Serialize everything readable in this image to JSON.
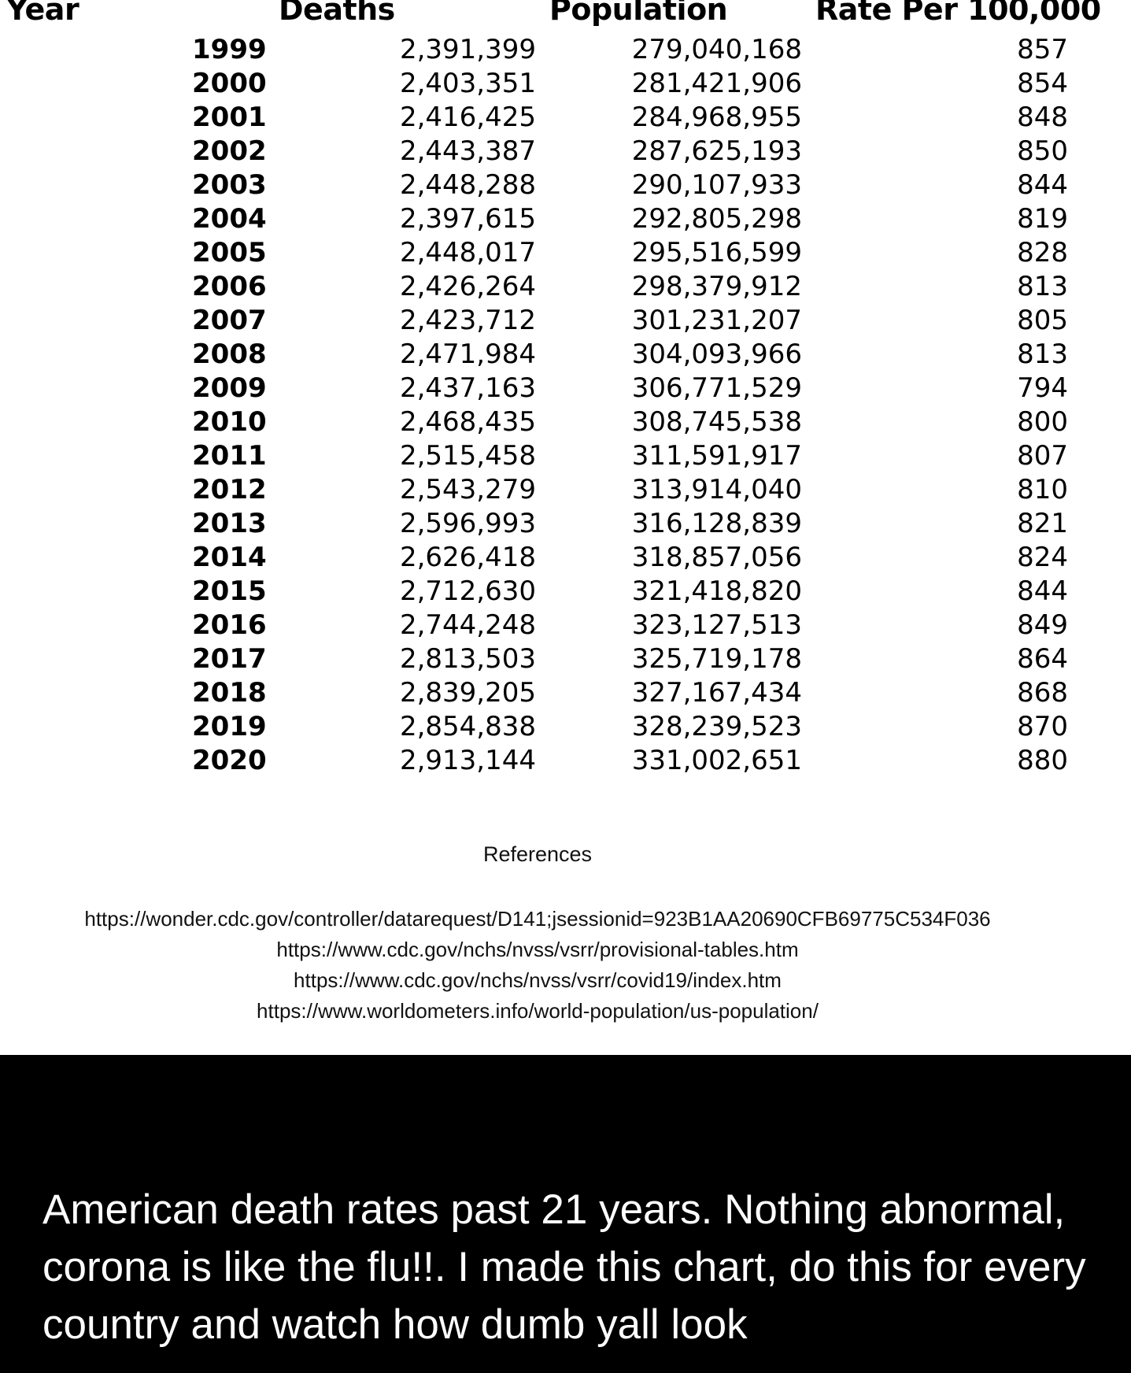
{
  "table": {
    "headers": {
      "year": "Year",
      "deaths": "Deaths",
      "population": "Population",
      "rate": "Rate Per 100,000"
    },
    "rows": [
      {
        "year": "1999",
        "deaths": "2,391,399",
        "population": "279,040,168",
        "rate": "857"
      },
      {
        "year": "2000",
        "deaths": "2,403,351",
        "population": "281,421,906",
        "rate": "854"
      },
      {
        "year": "2001",
        "deaths": "2,416,425",
        "population": "284,968,955",
        "rate": "848"
      },
      {
        "year": "2002",
        "deaths": "2,443,387",
        "population": "287,625,193",
        "rate": "850"
      },
      {
        "year": "2003",
        "deaths": "2,448,288",
        "population": "290,107,933",
        "rate": "844"
      },
      {
        "year": "2004",
        "deaths": "2,397,615",
        "population": "292,805,298",
        "rate": "819"
      },
      {
        "year": "2005",
        "deaths": "2,448,017",
        "population": "295,516,599",
        "rate": "828"
      },
      {
        "year": "2006",
        "deaths": "2,426,264",
        "population": "298,379,912",
        "rate": "813"
      },
      {
        "year": "2007",
        "deaths": "2,423,712",
        "population": "301,231,207",
        "rate": "805"
      },
      {
        "year": "2008",
        "deaths": "2,471,984",
        "population": "304,093,966",
        "rate": "813"
      },
      {
        "year": "2009",
        "deaths": "2,437,163",
        "population": "306,771,529",
        "rate": "794"
      },
      {
        "year": "2010",
        "deaths": "2,468,435",
        "population": "308,745,538",
        "rate": "800"
      },
      {
        "year": "2011",
        "deaths": "2,515,458",
        "population": "311,591,917",
        "rate": "807"
      },
      {
        "year": "2012",
        "deaths": "2,543,279",
        "population": "313,914,040",
        "rate": "810"
      },
      {
        "year": "2013",
        "deaths": "2,596,993",
        "population": "316,128,839",
        "rate": "821"
      },
      {
        "year": "2014",
        "deaths": "2,626,418",
        "population": "318,857,056",
        "rate": "824"
      },
      {
        "year": "2015",
        "deaths": "2,712,630",
        "population": "321,418,820",
        "rate": "844"
      },
      {
        "year": "2016",
        "deaths": "2,744,248",
        "population": "323,127,513",
        "rate": "849"
      },
      {
        "year": "2017",
        "deaths": "2,813,503",
        "population": "325,719,178",
        "rate": "864"
      },
      {
        "year": "2018",
        "deaths": "2,839,205",
        "population": "327,167,434",
        "rate": "868"
      },
      {
        "year": "2019",
        "deaths": "2,854,838",
        "population": "328,239,523",
        "rate": "870"
      },
      {
        "year": "2020",
        "deaths": "2,913,144",
        "population": "331,002,651",
        "rate": "880"
      }
    ]
  },
  "references": {
    "title": "References",
    "links": [
      "https://wonder.cdc.gov/controller/datarequest/D141;jsessionid=923B1AA20690CFB69775C534F036",
      "https://www.cdc.gov/nchs/nvss/vsrr/provisional-tables.htm",
      "https://www.cdc.gov/nchs/nvss/vsrr/covid19/index.htm",
      "https://www.worldometers.info/world-population/us-population/"
    ]
  },
  "caption": "American death rates past 21 years. Nothing abnormal, corona is like the flu!!. I made this chart, do this for every country and watch how dumb yall look"
}
